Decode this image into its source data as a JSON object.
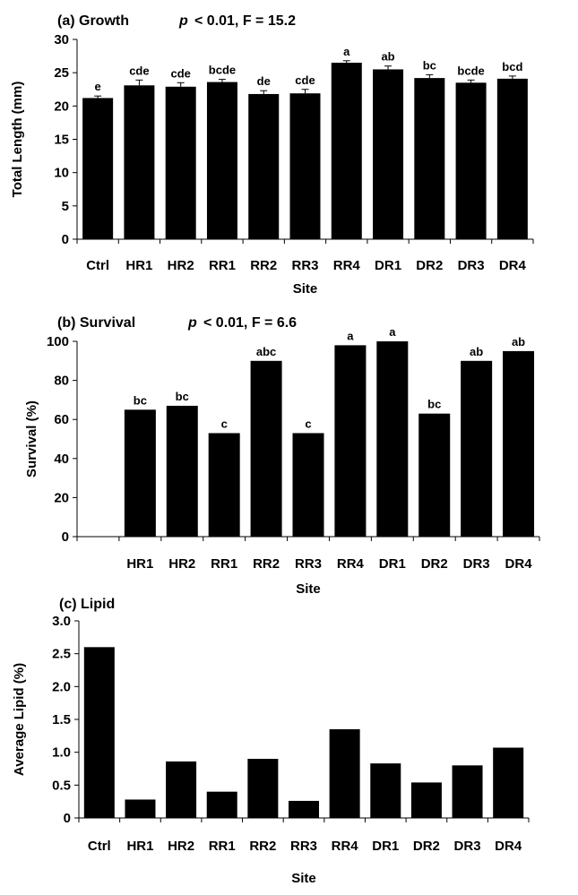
{
  "chart_data": [
    {
      "type": "bar",
      "panel": "(a) Growth",
      "title": "(a) Growth",
      "stats_p_symbol": "p",
      "stats_rest": "< 0.01, F = 15.2",
      "ylabel": "Total Length (mm)",
      "xlabel": "Site",
      "ylim": [
        0,
        30
      ],
      "yticks": [
        0,
        5,
        10,
        15,
        20,
        25,
        30
      ],
      "ytick_labels": [
        "0",
        "5",
        "10",
        "15",
        "20",
        "25",
        "30"
      ],
      "categories": [
        "Ctrl",
        "HR1",
        "HR2",
        "RR1",
        "RR2",
        "RR3",
        "RR4",
        "DR1",
        "DR2",
        "DR3",
        "DR4"
      ],
      "values": [
        21.2,
        23.1,
        22.9,
        23.6,
        21.8,
        21.9,
        26.5,
        25.5,
        24.2,
        23.5,
        24.1
      ],
      "errors": [
        0.3,
        0.8,
        0.6,
        0.4,
        0.5,
        0.6,
        0.3,
        0.5,
        0.5,
        0.4,
        0.4
      ],
      "sig_labels": [
        "e",
        "cde",
        "cde",
        "bcde",
        "de",
        "cde",
        "a",
        "ab",
        "bc",
        "bcde",
        "bcd"
      ]
    },
    {
      "type": "bar",
      "panel": "(b) Survival",
      "title": "(b) Survival",
      "stats_p_symbol": "p",
      "stats_rest": "< 0.01, F = 6.6",
      "ylabel": "Survival (%)",
      "xlabel": "Site",
      "ylim": [
        0,
        100
      ],
      "yticks": [
        0,
        20,
        40,
        60,
        80,
        100
      ],
      "ytick_labels": [
        "0",
        "20",
        "40",
        "60",
        "80",
        "100"
      ],
      "categories": [
        "",
        "HR1",
        "HR2",
        "RR1",
        "RR2",
        "RR3",
        "RR4",
        "DR1",
        "DR2",
        "DR3",
        "DR4"
      ],
      "values": [
        null,
        65,
        67,
        53,
        90,
        53,
        98,
        100,
        63,
        90,
        95
      ],
      "sig_labels": [
        "",
        "bc",
        "bc",
        "c",
        "abc",
        "c",
        "a",
        "a",
        "bc",
        "ab",
        "ab"
      ]
    },
    {
      "type": "bar",
      "panel": "(c) Lipid",
      "title": "(c) Lipid",
      "ylabel": "Average Lipid (%)",
      "xlabel": "Site",
      "ylim": [
        0,
        3.0
      ],
      "yticks": [
        0,
        0.5,
        1.0,
        1.5,
        2.0,
        2.5,
        3.0
      ],
      "ytick_labels": [
        "0",
        "0.5",
        "1.0",
        "1.5",
        "2.0",
        "2.5",
        "3.0"
      ],
      "categories": [
        "Ctrl",
        "HR1",
        "HR2",
        "RR1",
        "RR2",
        "RR3",
        "RR4",
        "DR1",
        "DR2",
        "DR3",
        "DR4"
      ],
      "values": [
        2.6,
        0.28,
        0.86,
        0.4,
        0.9,
        0.26,
        1.35,
        0.83,
        0.54,
        0.8,
        1.07
      ]
    }
  ]
}
